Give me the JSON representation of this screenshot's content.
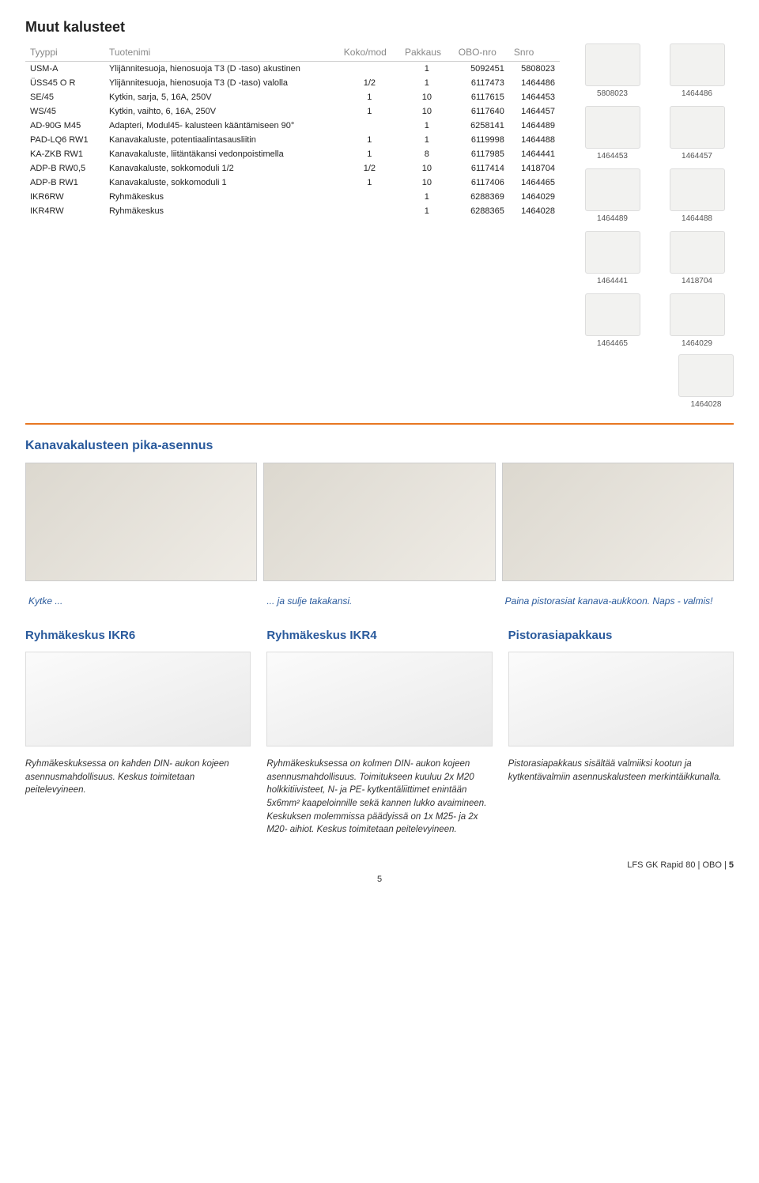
{
  "title": "Muut kalusteet",
  "table": {
    "headers": [
      "Tyyppi",
      "Tuotenimi",
      "Koko/mod",
      "Pakkaus",
      "OBO-nro",
      "Snro"
    ],
    "rows": [
      {
        "type": "USM-A",
        "name": "Ylijännitesuoja, hienosuoja T3 (D -taso) akustinen",
        "size": "",
        "pack": "1",
        "obo": "5092451",
        "snro": "5808023"
      },
      {
        "type": "ÜSS45 O R",
        "name": "Ylijännitesuoja, hienosuoja T3 (D -taso) valolla",
        "size": "1/2",
        "pack": "1",
        "obo": "6117473",
        "snro": "1464486"
      },
      {
        "type": "SE/45",
        "name": "Kytkin, sarja, 5, 16A, 250V",
        "size": "1",
        "pack": "10",
        "obo": "6117615",
        "snro": "1464453"
      },
      {
        "type": "WS/45",
        "name": "Kytkin, vaihto, 6, 16A, 250V",
        "size": "1",
        "pack": "10",
        "obo": "6117640",
        "snro": "1464457"
      },
      {
        "type": "AD-90G M45",
        "name": "Adapteri, Modul45- kalusteen kääntämiseen 90°",
        "size": "",
        "pack": "1",
        "obo": "6258141",
        "snro": "1464489"
      },
      {
        "type": "PAD-LQ6 RW1",
        "name": "Kanavakaluste, potentiaalintasausliitin",
        "size": "1",
        "pack": "1",
        "obo": "6119998",
        "snro": "1464488"
      },
      {
        "type": "KA-ZKB RW1",
        "name": "Kanavakaluste, liitäntäkansi vedonpoistimella",
        "size": "1",
        "pack": "8",
        "obo": "6117985",
        "snro": "1464441"
      },
      {
        "type": "ADP-B RW0,5",
        "name": "Kanavakaluste, sokkomoduli 1/2",
        "size": "1/2",
        "pack": "10",
        "obo": "6117414",
        "snro": "1418704"
      },
      {
        "type": "ADP-B RW1",
        "name": "Kanavakaluste, sokkomoduli 1",
        "size": "1",
        "pack": "10",
        "obo": "6117406",
        "snro": "1464465"
      },
      {
        "type": "IKR6RW",
        "name": "Ryhmäkeskus",
        "size": "",
        "pack": "1",
        "obo": "6288369",
        "snro": "1464029"
      },
      {
        "type": "IKR4RW",
        "name": "Ryhmäkeskus",
        "size": "",
        "pack": "1",
        "obo": "6288365",
        "snro": "1464028"
      }
    ]
  },
  "thumbs": [
    "5808023",
    "1464486",
    "1464453",
    "1464457",
    "1464489",
    "1464488",
    "1464441",
    "1418704",
    "1464465",
    "1464029"
  ],
  "thumb_single": "1464028",
  "section2_title": "Kanavakalusteen pika-asennus",
  "captions": [
    "Kytke ...",
    "... ja sulje takakansi.",
    "Paina pistorasiat kanava-aukkoon. Naps - valmis!"
  ],
  "cols": [
    {
      "title": "Ryhmäkeskus IKR6",
      "text": "Ryhmäkeskuksessa on kahden DIN- aukon kojeen asennusmahdollisuus. Keskus toimitetaan peitelevyineen."
    },
    {
      "title": "Ryhmäkeskus IKR4",
      "text": "Ryhmäkeskuksessa on kolmen DIN- aukon kojeen asennusmahdollisuus. Toimitukseen kuuluu 2x M20 holkkitiivisteet, N- ja PE- kytkentäliittimet enintään 5x6mm² kaapeloinnille sekä kannen lukko avaimineen. Keskuksen molemmissa päädyissä on 1x M25- ja 2x M20- aihiot. Keskus toimitetaan peitelevyineen."
    },
    {
      "title": "Pistorasiapakkaus",
      "text": "Pistorasiapakkaus sisältää valmiiksi kootun ja kytkentävalmiin asennuskalusteen merkintäikkunalla."
    }
  ],
  "footer": {
    "left": "LFS GK Rapid 80",
    "sep": " | ",
    "mid": "OBO",
    "page": "5"
  },
  "page_bottom": "5"
}
